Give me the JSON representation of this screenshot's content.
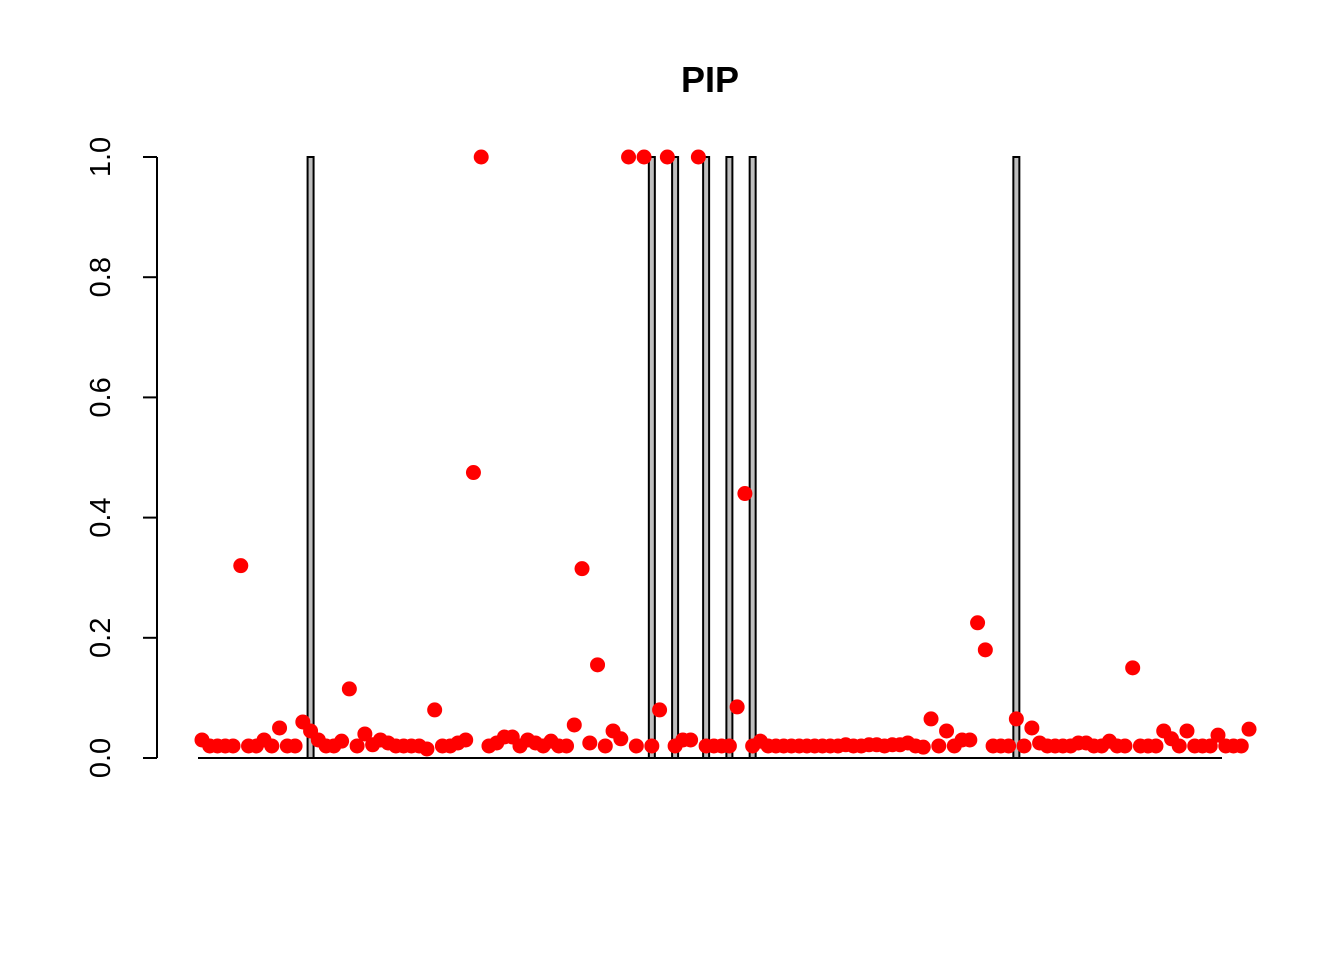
{
  "chart_data": {
    "type": "bar",
    "title": "PIP",
    "xlabel": "",
    "ylabel": "",
    "ylim": [
      0,
      1
    ],
    "y_ticks": [
      0.0,
      0.2,
      0.4,
      0.6,
      0.8,
      1.0
    ],
    "y_tick_labels": [
      "0.0",
      "0.2",
      "0.4",
      "0.6",
      "0.8",
      "1.0"
    ],
    "x_axis_labels_shown": false,
    "grid": false,
    "n_positions": 132,
    "bar_color": "#bebebe",
    "point_color": "#ff0000",
    "series": [
      {
        "type": "bar",
        "positions": [
          14,
          58,
          61,
          65,
          68,
          71,
          105
        ],
        "values": [
          1,
          1,
          1,
          1,
          1,
          1,
          1
        ]
      },
      {
        "type": "scatter",
        "values": [
          0.03,
          0.02,
          0.02,
          0.02,
          0.02,
          0.32,
          0.02,
          0.02,
          0.03,
          0.02,
          0.05,
          0.02,
          0.02,
          0.06,
          0.045,
          0.03,
          0.02,
          0.02,
          0.028,
          0.115,
          0.02,
          0.04,
          0.022,
          0.03,
          0.025,
          0.02,
          0.02,
          0.02,
          0.02,
          0.015,
          0.08,
          0.02,
          0.02,
          0.025,
          0.03,
          0.475,
          1.0,
          0.02,
          0.025,
          0.035,
          0.035,
          0.02,
          0.03,
          0.025,
          0.02,
          0.028,
          0.02,
          0.02,
          0.055,
          0.315,
          0.025,
          0.155,
          0.02,
          0.045,
          0.032,
          1.0,
          0.02,
          1.0,
          0.02,
          0.08,
          1.0,
          0.02,
          0.03,
          0.03,
          1.0,
          0.02,
          0.02,
          0.02,
          0.02,
          0.085,
          0.44,
          0.02,
          0.028,
          0.02,
          0.02,
          0.02,
          0.02,
          0.02,
          0.02,
          0.02,
          0.02,
          0.02,
          0.02,
          0.022,
          0.02,
          0.02,
          0.022,
          0.022,
          0.02,
          0.022,
          0.022,
          0.025,
          0.02,
          0.018,
          0.065,
          0.02,
          0.045,
          0.02,
          0.03,
          0.03,
          0.225,
          0.18,
          0.02,
          0.02,
          0.02,
          0.065,
          0.02,
          0.05,
          0.025,
          0.02,
          0.02,
          0.02,
          0.02,
          0.025,
          0.025,
          0.02,
          0.02,
          0.028,
          0.02,
          0.02,
          0.15,
          0.02,
          0.02,
          0.02,
          0.045,
          0.032,
          0.02,
          0.045,
          0.02,
          0.02,
          0.02,
          0.038,
          0.02,
          0.02,
          0.02,
          0.048
        ]
      }
    ]
  }
}
